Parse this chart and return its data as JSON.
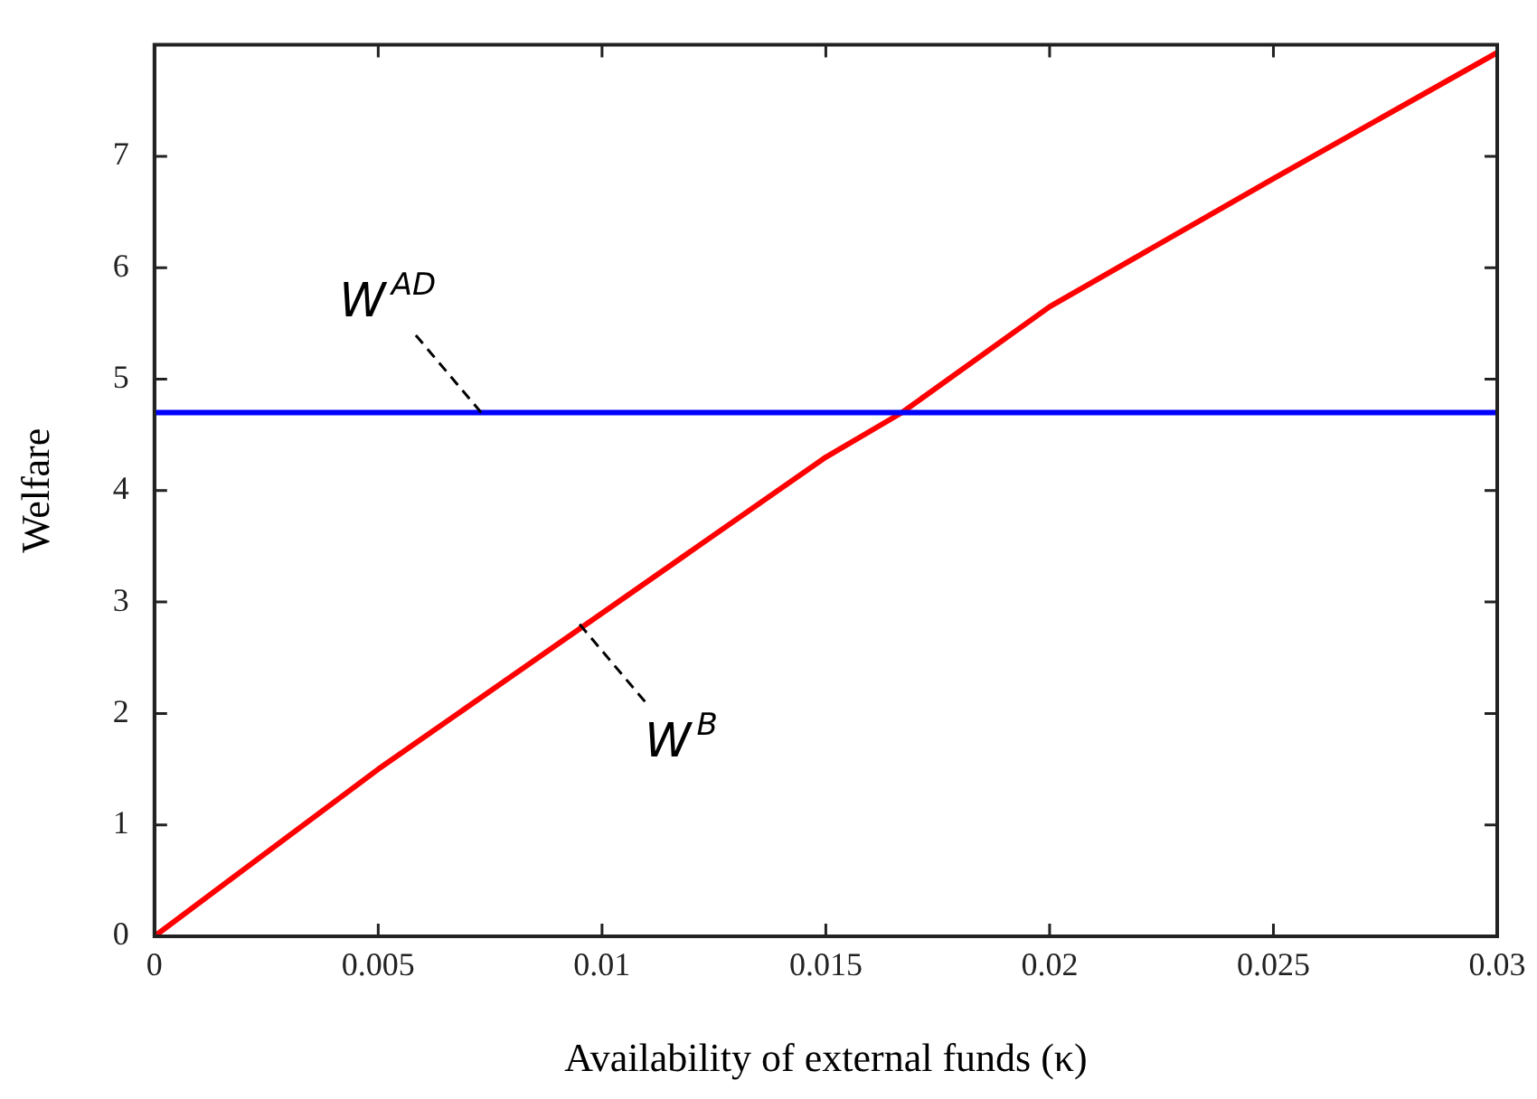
{
  "chart_data": {
    "type": "line",
    "xlabel": "Availability of external funds (κ)",
    "ylabel": "Welfare",
    "series": [
      {
        "color": "#0000ff",
        "x": [
          0,
          0.03
        ],
        "values": [
          4.7,
          4.7
        ]
      },
      {
        "color": "#ff0000",
        "x": [
          0,
          0.005,
          0.01,
          0.015,
          0.0167,
          0.02,
          0.025,
          0.03
        ],
        "values": [
          0,
          1.5,
          2.9,
          4.3,
          4.7,
          5.65,
          6.8,
          7.93
        ]
      }
    ],
    "annotations": [
      {
        "text": "W$^{AD}$",
        "x": 0.0073,
        "y": 4.7
      },
      {
        "text": "W$^{B}$",
        "x": 0.0095,
        "y": 2.8
      }
    ],
    "xlim": [
      0,
      0.03
    ],
    "xticks": [
      0,
      0.005,
      0.01,
      0.015,
      0.02,
      0.025,
      0.03
    ],
    "ylim": [
      0,
      8
    ],
    "yticks": [
      0,
      1,
      2,
      3,
      4,
      5,
      6,
      7
    ],
    "grid": false,
    "legend": false,
    "marker": "none",
    "line_style": "solid"
  }
}
